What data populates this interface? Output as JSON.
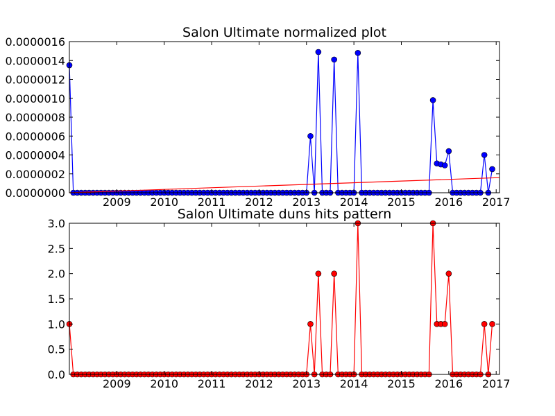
{
  "chart_data": [
    {
      "type": "line",
      "title": "Salon Ultimate normalized plot",
      "xlabel": "",
      "ylabel": "",
      "xlim": [
        2008.0,
        2017.07
      ],
      "ylim": [
        0,
        1.6e-06
      ],
      "x_ticks": [
        2009,
        2010,
        2011,
        2012,
        2013,
        2014,
        2015,
        2016,
        2017
      ],
      "x_tick_labels": [
        "2009",
        "2010",
        "2011",
        "2012",
        "2013",
        "2014",
        "2015",
        "2016",
        "2017"
      ],
      "y_ticks": [
        0,
        2e-07,
        4e-07,
        6e-07,
        8e-07,
        1e-06,
        1.2e-06,
        1.4e-06,
        1.6e-06
      ],
      "y_tick_labels": [
        "0.0000000",
        "0.0000002",
        "0.0000004",
        "0.0000006",
        "0.0000008",
        "0.0000010",
        "0.0000012",
        "0.0000014",
        "0.0000016"
      ],
      "grid": false,
      "series": [
        {
          "color": "#0000ff",
          "marker": "circle",
          "x_start": 2008.0,
          "x_step": 0.0833333,
          "values": [
            1.35e-06,
            0,
            0,
            0,
            0,
            0,
            0,
            0,
            0,
            0,
            0,
            0,
            0,
            0,
            0,
            0,
            0,
            0,
            0,
            0,
            0,
            0,
            0,
            0,
            0,
            0,
            0,
            0,
            0,
            0,
            0,
            0,
            0,
            0,
            0,
            0,
            0,
            0,
            0,
            0,
            0,
            0,
            0,
            0,
            0,
            0,
            0,
            0,
            0,
            0,
            0,
            0,
            0,
            0,
            0,
            0,
            0,
            0,
            0,
            0,
            0,
            6e-07,
            0,
            1.49e-06,
            0,
            0,
            0,
            1.41e-06,
            0,
            0,
            0,
            0,
            0,
            1.48e-06,
            0,
            0,
            0,
            0,
            0,
            0,
            0,
            0,
            0,
            0,
            0,
            0,
            0,
            0,
            0,
            0,
            0,
            0,
            9.8e-07,
            3.1e-07,
            3e-07,
            2.9e-07,
            4.4e-07,
            0,
            0,
            0,
            0,
            0,
            0,
            0,
            0,
            4e-07,
            0,
            2.5e-07
          ]
        },
        {
          "color": "#ff0000",
          "marker": "none",
          "x": [
            2008.0,
            2017.07
          ],
          "values": [
            0.0,
            1.6e-07
          ]
        }
      ]
    },
    {
      "type": "line",
      "title": "Salon Ultimate duns hits pattern",
      "xlabel": "",
      "ylabel": "",
      "xlim": [
        2008.0,
        2017.07
      ],
      "ylim": [
        0,
        3.0
      ],
      "x_ticks": [
        2009,
        2010,
        2011,
        2012,
        2013,
        2014,
        2015,
        2016,
        2017
      ],
      "x_tick_labels": [
        "2009",
        "2010",
        "2011",
        "2012",
        "2013",
        "2014",
        "2015",
        "2016",
        "2017"
      ],
      "y_ticks": [
        0,
        0.5,
        1.0,
        1.5,
        2.0,
        2.5,
        3.0
      ],
      "y_tick_labels": [
        "0.0",
        "0.5",
        "1.0",
        "1.5",
        "2.0",
        "2.5",
        "3.0"
      ],
      "grid": false,
      "series": [
        {
          "color": "#ff0000",
          "marker": "circle",
          "x_start": 2008.0,
          "x_step": 0.0833333,
          "values": [
            1,
            0,
            0,
            0,
            0,
            0,
            0,
            0,
            0,
            0,
            0,
            0,
            0,
            0,
            0,
            0,
            0,
            0,
            0,
            0,
            0,
            0,
            0,
            0,
            0,
            0,
            0,
            0,
            0,
            0,
            0,
            0,
            0,
            0,
            0,
            0,
            0,
            0,
            0,
            0,
            0,
            0,
            0,
            0,
            0,
            0,
            0,
            0,
            0,
            0,
            0,
            0,
            0,
            0,
            0,
            0,
            0,
            0,
            0,
            0,
            0,
            1,
            0,
            2,
            0,
            0,
            0,
            2,
            0,
            0,
            0,
            0,
            0,
            3,
            0,
            0,
            0,
            0,
            0,
            0,
            0,
            0,
            0,
            0,
            0,
            0,
            0,
            0,
            0,
            0,
            0,
            0,
            3,
            1,
            1,
            1,
            2,
            0,
            0,
            0,
            0,
            0,
            0,
            0,
            0,
            1,
            0,
            1
          ]
        }
      ]
    }
  ]
}
